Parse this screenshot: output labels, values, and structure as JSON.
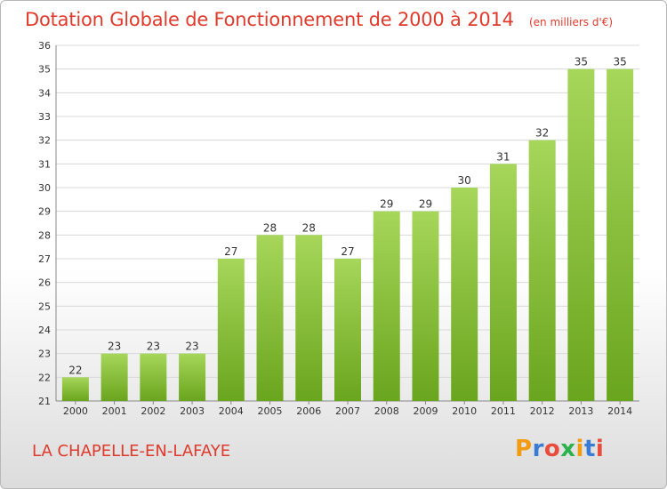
{
  "header": {
    "title": "Dotation Globale de Fonctionnement de 2000 à 2014",
    "subtitle": "(en milliers d'€)"
  },
  "footer": {
    "commune": "LA CHAPELLE-EN-LAFAYE",
    "logo_text": "Proxiti",
    "logo_colors": [
      "#f39c12",
      "#3a7bd5",
      "#e74c3c",
      "#2bb24c",
      "#f39c12",
      "#3a7bd5",
      "#e74c3c"
    ]
  },
  "chart_data": {
    "type": "bar",
    "title": "Dotation Globale de Fonctionnement de 2000 à 2014",
    "subtitle": "(en milliers d'€)",
    "xlabel": "",
    "ylabel": "",
    "categories": [
      "2000",
      "2001",
      "2002",
      "2003",
      "2004",
      "2005",
      "2006",
      "2007",
      "2008",
      "2009",
      "2010",
      "2011",
      "2012",
      "2013",
      "2014"
    ],
    "values": [
      22,
      23,
      23,
      23,
      27,
      28,
      28,
      27,
      29,
      29,
      30,
      31,
      32,
      35,
      35
    ],
    "ylim": [
      21,
      36
    ],
    "yticks": [
      21,
      22,
      23,
      24,
      25,
      26,
      27,
      28,
      29,
      30,
      31,
      32,
      33,
      34,
      35,
      36
    ],
    "grid": true,
    "legend": "none",
    "bar_color_top": "#a6d65a",
    "bar_color_bottom": "#6aa51e",
    "grid_color": "#d8d8d8"
  }
}
